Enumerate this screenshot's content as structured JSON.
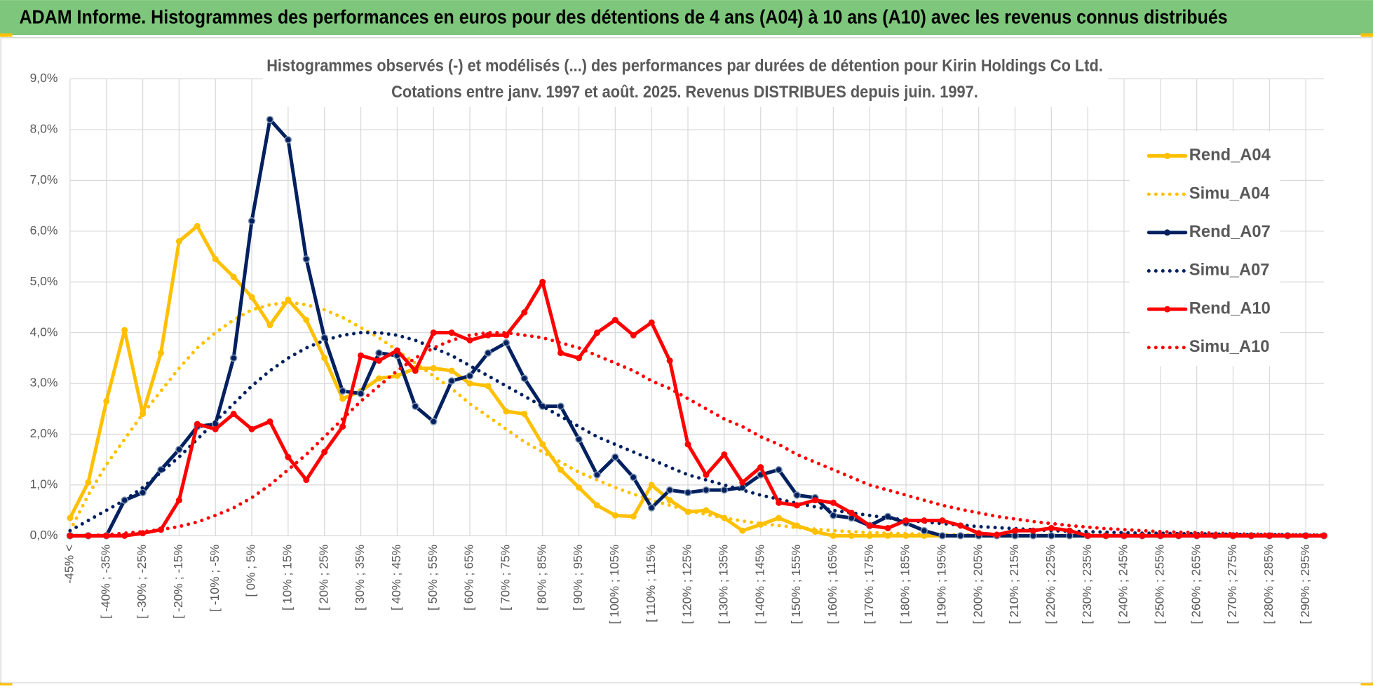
{
  "header": {
    "title": "ADAM Informe. Histogrammes des performances en euros pour des détentions de 4 ans (A04) à 10 ans (A10) avec les revenus connus distribués"
  },
  "chart_data": {
    "type": "line",
    "title": "Histogrammes observés (-) et modélisés (...) des performances par durées de détention pour Kirin Holdings Co Ltd.",
    "subtitle": "Cotations entre janv. 1997 et août. 2025. Revenus DISTRIBUES depuis juin. 1997.",
    "categories": [
      "-45% <",
      null,
      "[ -40% ; -35%",
      null,
      "[ -30% ; -25%",
      null,
      "[ -20% ; -15%",
      null,
      "[ -10% ; -5%",
      null,
      "[ 0% ; 5%",
      null,
      "[ 10% ; 15%",
      null,
      "[ 20% ; 25%",
      null,
      "[ 30% ; 35%",
      null,
      "[ 40% ; 45%",
      null,
      "[ 50% ; 55%",
      null,
      "[ 60% ; 65%",
      null,
      "[ 70% ; 75%",
      null,
      "[ 80% ; 85%",
      null,
      "[ 90% ; 95%",
      null,
      "[ 100% ; 105%",
      null,
      "[ 110% ; 115%",
      null,
      "[ 120% ; 125%",
      null,
      "[ 130% ; 135%",
      null,
      "[ 140% ; 145%",
      null,
      "[ 150% ; 155%",
      null,
      "[ 160% ; 165%",
      null,
      "[ 170% ; 175%",
      null,
      "[ 180% ; 185%",
      null,
      "[ 190% ; 195%",
      null,
      "[ 200% ; 205%",
      null,
      "[ 210% ; 215%",
      null,
      "[ 220% ; 225%",
      null,
      "[ 230% ; 235%",
      null,
      "[ 240% ; 245%",
      null,
      "[ 250% ; 255%",
      null,
      "[ 260% ; 265%",
      null,
      "[ 270% ; 275%",
      null,
      "[ 280% ; 285%",
      null,
      "[ 290% ; 295%",
      null
    ],
    "series": [
      {
        "name": "Rend_A04",
        "color": "#FFC000",
        "line_style": "solid",
        "values": [
          0.35,
          1.05,
          2.65,
          4.05,
          2.4,
          3.6,
          5.8,
          6.1,
          5.45,
          5.1,
          4.7,
          4.15,
          4.65,
          4.25,
          3.5,
          2.7,
          2.85,
          3.1,
          3.15,
          3.3,
          3.3,
          3.25,
          3.0,
          2.95,
          2.45,
          2.4,
          1.8,
          1.3,
          0.95,
          0.6,
          0.4,
          0.38,
          1.0,
          0.7,
          0.47,
          0.5,
          0.35,
          0.1,
          0.22,
          0.35,
          0.2,
          0.08,
          0,
          0,
          0,
          0,
          0,
          0,
          0,
          0,
          0,
          0,
          0,
          0,
          0,
          0,
          0,
          0,
          0,
          0,
          0,
          0,
          0,
          0,
          0,
          0,
          0,
          0,
          0,
          0
        ]
      },
      {
        "name": "Simu_A04",
        "color": "#FFC000",
        "line_style": "dotted",
        "values": [
          0.1,
          0.8,
          1.4,
          1.9,
          2.4,
          2.85,
          3.3,
          3.7,
          4.0,
          4.25,
          4.45,
          4.55,
          4.6,
          4.55,
          4.45,
          4.3,
          4.1,
          3.9,
          3.65,
          3.4,
          3.15,
          2.9,
          2.6,
          2.35,
          2.1,
          1.85,
          1.65,
          1.45,
          1.25,
          1.1,
          0.95,
          0.82,
          0.7,
          0.6,
          0.5,
          0.42,
          0.35,
          0.29,
          0.24,
          0.2,
          0.16,
          0.13,
          0.1,
          0.08,
          0.06,
          0.05,
          0.04,
          0.03,
          0.02,
          0.02,
          0.01,
          0.01,
          0,
          0,
          0,
          0,
          0,
          0,
          0,
          0,
          0,
          0,
          0,
          0,
          0,
          0,
          0,
          0,
          0,
          0
        ]
      },
      {
        "name": "Rend_A07",
        "color": "#002060",
        "line_style": "solid",
        "values": [
          0,
          0,
          0,
          0.7,
          0.85,
          1.3,
          1.7,
          2.15,
          2.2,
          3.5,
          6.2,
          8.2,
          7.8,
          5.45,
          3.9,
          2.85,
          2.8,
          3.6,
          3.55,
          2.55,
          2.25,
          3.05,
          3.15,
          3.6,
          3.8,
          3.1,
          2.55,
          2.55,
          1.9,
          1.2,
          1.55,
          1.15,
          0.55,
          0.9,
          0.85,
          0.9,
          0.9,
          0.95,
          1.2,
          1.3,
          0.8,
          0.75,
          0.4,
          0.35,
          0.2,
          0.38,
          0.25,
          0.1,
          0,
          0,
          0,
          0,
          0,
          0,
          0,
          0,
          0,
          0,
          0,
          0,
          0,
          0,
          0,
          0,
          0,
          0,
          0,
          0,
          0,
          0
        ]
      },
      {
        "name": "Simu_A07",
        "color": "#002060",
        "line_style": "dotted",
        "values": [
          0.1,
          0.3,
          0.5,
          0.7,
          0.95,
          1.25,
          1.55,
          1.9,
          2.25,
          2.6,
          2.95,
          3.25,
          3.5,
          3.7,
          3.85,
          3.95,
          4.0,
          4.0,
          3.95,
          3.85,
          3.7,
          3.55,
          3.35,
          3.15,
          2.95,
          2.75,
          2.55,
          2.35,
          2.15,
          1.95,
          1.8,
          1.65,
          1.5,
          1.35,
          1.2,
          1.1,
          1.0,
          0.9,
          0.8,
          0.72,
          0.64,
          0.57,
          0.5,
          0.45,
          0.4,
          0.35,
          0.31,
          0.27,
          0.24,
          0.21,
          0.18,
          0.16,
          0.14,
          0.12,
          0.1,
          0.09,
          0.08,
          0.07,
          0.06,
          0.05,
          0.05,
          0.04,
          0.04,
          0.03,
          0.03,
          0.02,
          0.02,
          0.02,
          0.01,
          0.01
        ]
      },
      {
        "name": "Rend_A10",
        "color": "#FF0000",
        "line_style": "solid",
        "values": [
          0,
          0,
          0,
          0,
          0.05,
          0.12,
          0.7,
          2.2,
          2.1,
          2.4,
          2.1,
          2.25,
          1.55,
          1.1,
          1.65,
          2.15,
          3.55,
          3.45,
          3.65,
          3.25,
          4.0,
          4.0,
          3.85,
          3.95,
          3.95,
          4.4,
          5.0,
          3.6,
          3.5,
          4.0,
          4.25,
          3.95,
          4.2,
          3.45,
          1.8,
          1.2,
          1.6,
          1.05,
          1.35,
          0.65,
          0.6,
          0.7,
          0.65,
          0.45,
          0.2,
          0.15,
          0.3,
          0.3,
          0.3,
          0.2,
          0.05,
          0.02,
          0.1,
          0.1,
          0.15,
          0.1,
          0,
          0,
          0,
          0,
          0,
          0,
          0,
          0,
          0,
          0,
          0,
          0,
          0,
          0
        ]
      },
      {
        "name": "Simu_A10",
        "color": "#FF0000",
        "line_style": "dotted",
        "values": [
          0,
          0,
          0.02,
          0.05,
          0.08,
          0.12,
          0.18,
          0.27,
          0.4,
          0.55,
          0.75,
          1.0,
          1.3,
          1.6,
          1.95,
          2.3,
          2.65,
          2.95,
          3.25,
          3.5,
          3.7,
          3.85,
          3.95,
          4.0,
          4.0,
          3.95,
          3.9,
          3.8,
          3.7,
          3.55,
          3.4,
          3.25,
          3.05,
          2.9,
          2.7,
          2.5,
          2.3,
          2.15,
          1.95,
          1.8,
          1.6,
          1.45,
          1.3,
          1.15,
          1.0,
          0.9,
          0.8,
          0.7,
          0.6,
          0.52,
          0.45,
          0.38,
          0.33,
          0.28,
          0.24,
          0.2,
          0.17,
          0.14,
          0.12,
          0.1,
          0.08,
          0.07,
          0.06,
          0.05,
          0.04,
          0.03,
          0.03,
          0.02,
          0.02,
          0.01
        ]
      }
    ],
    "ylim": [
      0,
      9
    ],
    "yticks": [
      {
        "value": 0,
        "label": "0,0%"
      },
      {
        "value": 1,
        "label": "1,0%"
      },
      {
        "value": 2,
        "label": "2,0%"
      },
      {
        "value": 3,
        "label": "3,0%"
      },
      {
        "value": 4,
        "label": "4,0%"
      },
      {
        "value": 5,
        "label": "5,0%"
      },
      {
        "value": 6,
        "label": "6,0%"
      },
      {
        "value": 7,
        "label": "7,0%"
      },
      {
        "value": 8,
        "label": "8,0%"
      },
      {
        "value": 9,
        "label": "9,0%"
      }
    ],
    "grid": true,
    "legend": "upper right"
  }
}
